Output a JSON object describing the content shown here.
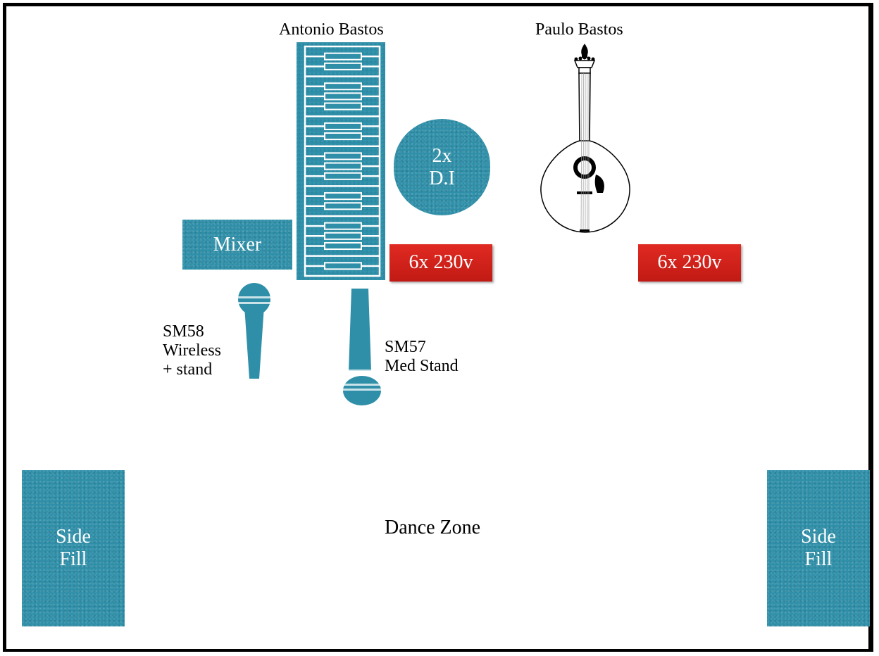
{
  "performers": {
    "keyboard_player": "Antonio Bastos",
    "guitar_player": "Paulo Bastos"
  },
  "equipment": {
    "mixer": "Mixer",
    "di_box": {
      "line1": "2x",
      "line2": "D.I"
    },
    "power_left": "6x 230v",
    "power_right": "6x 230v",
    "mic_wireless": {
      "line1": "SM58",
      "line2": "Wireless",
      "line3": "+ stand"
    },
    "mic_stand": {
      "line1": "SM57",
      "line2": "Med Stand"
    },
    "side_fill_left": {
      "line1": "Side",
      "line2": "Fill"
    },
    "side_fill_right": {
      "line1": "Side",
      "line2": "Fill"
    }
  },
  "zones": {
    "dance": "Dance Zone"
  },
  "icons": {
    "keyboard": "keyboard-icon",
    "guitar": "portuguese-guitar-icon",
    "mic_handheld": "microphone-icon",
    "mic_dynamic": "microphone-icon"
  },
  "colors": {
    "equipment": "#2f8fa8",
    "power": "#d4221b",
    "border": "#000000"
  }
}
